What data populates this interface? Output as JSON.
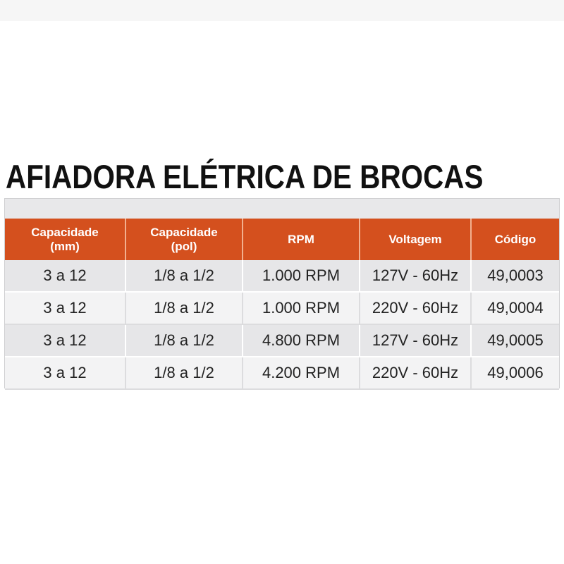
{
  "title": "AFIADORA ELÉTRICA DE BROCAS",
  "colors": {
    "header_bg": "#d4501e",
    "header_text": "#ffffff",
    "row_band": "#e6e6e8",
    "row_alt": "#f3f3f4"
  },
  "table": {
    "headers": [
      "Capacidade\n(mm)",
      "Capacidade\n(pol)",
      "RPM",
      "Voltagem",
      "Código"
    ],
    "rows": [
      [
        "3 a 12",
        "1/8 a 1/2",
        "1.000 RPM",
        "127V - 60Hz",
        "49,0003"
      ],
      [
        "3 a 12",
        "1/8 a 1/2",
        "1.000 RPM",
        "220V - 60Hz",
        "49,0004"
      ],
      [
        "3 a 12",
        "1/8 a 1/2",
        "4.800 RPM",
        "127V - 60Hz",
        "49,0005"
      ],
      [
        "3 a 12",
        "1/8 a 1/2",
        "4.200 RPM",
        "220V - 60Hz",
        "49,0006"
      ]
    ]
  }
}
